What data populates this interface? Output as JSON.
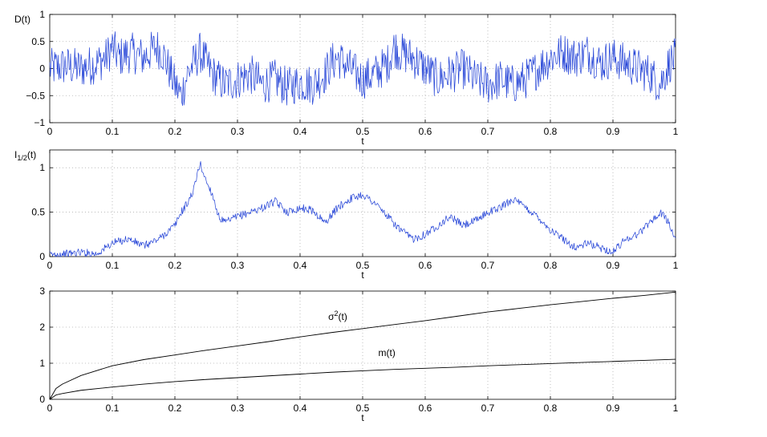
{
  "chart_data": [
    {
      "type": "line",
      "ylabel": "D(t)",
      "xlabel": "t",
      "xlim": [
        0,
        1
      ],
      "ylim": [
        -1,
        1
      ],
      "xticks": [
        "0",
        "0.1",
        "0.2",
        "0.3",
        "0.4",
        "0.5",
        "0.6",
        "0.7",
        "0.8",
        "0.9",
        "1"
      ],
      "yticks": [
        "−1",
        "−0.5",
        "0",
        "0.5",
        "1"
      ],
      "grid": true,
      "series": [
        {
          "color": "#1f3fd6",
          "x": [
            0,
            0.025,
            0.05,
            0.075,
            0.09,
            0.1,
            0.11,
            0.13,
            0.15,
            0.17,
            0.18,
            0.19,
            0.2,
            0.21,
            0.22,
            0.23,
            0.24,
            0.26,
            0.28,
            0.3,
            0.32,
            0.34,
            0.36,
            0.38,
            0.4,
            0.42,
            0.44,
            0.45,
            0.46,
            0.48,
            0.5,
            0.52,
            0.54,
            0.55,
            0.56,
            0.58,
            0.6,
            0.62,
            0.64,
            0.66,
            0.68,
            0.7,
            0.72,
            0.74,
            0.76,
            0.78,
            0.8,
            0.82,
            0.84,
            0.86,
            0.88,
            0.9,
            0.92,
            0.94,
            0.96,
            0.975,
            0.99,
            1
          ],
          "y": [
            0.0,
            0.05,
            0.0,
            0.1,
            0.2,
            0.4,
            0.2,
            0.3,
            0.2,
            0.4,
            0.3,
            0.0,
            -0.3,
            -0.5,
            -0.1,
            0.1,
            0.3,
            -0.1,
            -0.3,
            -0.2,
            -0.1,
            -0.3,
            -0.2,
            -0.35,
            -0.25,
            -0.3,
            -0.1,
            0.1,
            0.2,
            0.0,
            -0.2,
            -0.1,
            0.1,
            0.4,
            0.3,
            0.2,
            0.0,
            -0.2,
            -0.1,
            0.0,
            -0.2,
            -0.3,
            -0.2,
            -0.3,
            -0.2,
            0.0,
            0.2,
            0.3,
            0.2,
            0.3,
            0.1,
            0.2,
            0.1,
            0.0,
            -0.1,
            -0.3,
            0.1,
            0.2
          ]
        }
      ]
    },
    {
      "type": "line",
      "ylabel": "I1/2(t)",
      "xlabel": "t",
      "xlim": [
        0,
        1
      ],
      "ylim": [
        0,
        1.2
      ],
      "xticks": [
        "0",
        "0.1",
        "0.2",
        "0.3",
        "0.4",
        "0.5",
        "0.6",
        "0.7",
        "0.8",
        "0.9",
        "1"
      ],
      "yticks": [
        "0",
        "0.5",
        "1"
      ],
      "grid": true,
      "series": [
        {
          "color": "#1f3fd6",
          "x": [
            0,
            0.025,
            0.05,
            0.075,
            0.1,
            0.125,
            0.15,
            0.175,
            0.2,
            0.21,
            0.22,
            0.23,
            0.235,
            0.24,
            0.25,
            0.26,
            0.27,
            0.28,
            0.3,
            0.32,
            0.34,
            0.36,
            0.38,
            0.4,
            0.42,
            0.44,
            0.46,
            0.48,
            0.5,
            0.52,
            0.54,
            0.56,
            0.58,
            0.6,
            0.62,
            0.64,
            0.66,
            0.68,
            0.7,
            0.72,
            0.74,
            0.76,
            0.78,
            0.8,
            0.82,
            0.84,
            0.86,
            0.88,
            0.9,
            0.92,
            0.94,
            0.96,
            0.98,
            1
          ],
          "y": [
            0.02,
            0.03,
            0.05,
            0.03,
            0.15,
            0.2,
            0.12,
            0.2,
            0.35,
            0.5,
            0.6,
            0.75,
            0.9,
            1.05,
            0.85,
            0.7,
            0.45,
            0.38,
            0.45,
            0.5,
            0.55,
            0.62,
            0.5,
            0.55,
            0.52,
            0.38,
            0.55,
            0.65,
            0.7,
            0.6,
            0.45,
            0.3,
            0.2,
            0.25,
            0.35,
            0.45,
            0.35,
            0.4,
            0.5,
            0.55,
            0.65,
            0.55,
            0.45,
            0.3,
            0.2,
            0.1,
            0.15,
            0.1,
            0.05,
            0.2,
            0.25,
            0.4,
            0.5,
            0.2
          ]
        }
      ]
    },
    {
      "type": "line",
      "xlabel": "t",
      "xlim": [
        0,
        1
      ],
      "ylim": [
        0,
        3
      ],
      "xticks": [
        "0",
        "0.1",
        "0.2",
        "0.3",
        "0.4",
        "0.5",
        "0.6",
        "0.7",
        "0.8",
        "0.9",
        "1"
      ],
      "yticks": [
        "0",
        "1",
        "2",
        "3"
      ],
      "grid": true,
      "annotations": [
        {
          "text": "σ2(t)",
          "x": 0.445,
          "y": 2.2
        },
        {
          "text": "m(t)",
          "x": 0.525,
          "y": 1.2
        }
      ],
      "series": [
        {
          "color": "#000000",
          "x": [
            0,
            0.01,
            0.02,
            0.05,
            0.1,
            0.15,
            0.2,
            0.25,
            0.3,
            0.35,
            0.4,
            0.45,
            0.5,
            0.55,
            0.6,
            0.65,
            0.7,
            0.75,
            0.8,
            0.85,
            0.9,
            0.95,
            1
          ],
          "y": [
            0,
            0.3,
            0.42,
            0.66,
            0.93,
            1.1,
            1.23,
            1.36,
            1.48,
            1.6,
            1.73,
            1.85,
            1.96,
            2.07,
            2.18,
            2.3,
            2.42,
            2.52,
            2.62,
            2.71,
            2.8,
            2.88,
            2.97
          ]
        },
        {
          "color": "#000000",
          "x": [
            0,
            0.01,
            0.02,
            0.05,
            0.1,
            0.15,
            0.2,
            0.25,
            0.3,
            0.35,
            0.4,
            0.45,
            0.5,
            0.55,
            0.6,
            0.65,
            0.7,
            0.75,
            0.8,
            0.85,
            0.9,
            0.95,
            1
          ],
          "y": [
            0,
            0.12,
            0.16,
            0.25,
            0.34,
            0.42,
            0.49,
            0.55,
            0.6,
            0.65,
            0.7,
            0.75,
            0.79,
            0.83,
            0.86,
            0.89,
            0.93,
            0.96,
            0.99,
            1.02,
            1.05,
            1.08,
            1.11
          ]
        }
      ]
    }
  ]
}
